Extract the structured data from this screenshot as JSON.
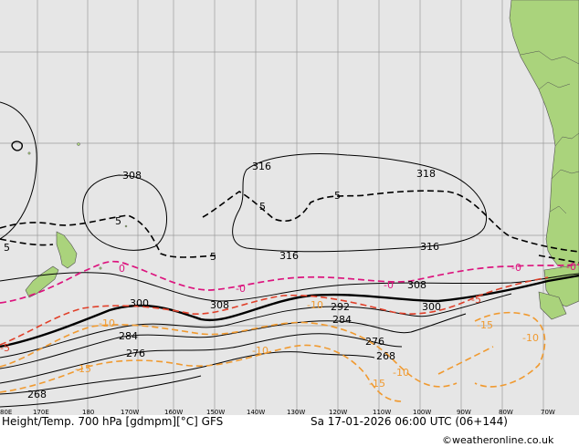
{
  "footer": {
    "title": "Height/Temp. 700 hPa [gdmpm][°C] GFS",
    "valid": "Sa 17-01-2026 06:00 UTC (06+144)",
    "copyright": "©weatheronline.co.uk"
  },
  "lon_ticks": [
    "80E",
    "170E",
    "180",
    "170W",
    "160W",
    "150W",
    "140W",
    "130W",
    "120W",
    "110W",
    "100W",
    "90W",
    "80W",
    "70W"
  ],
  "height_labels": [
    "308",
    "316",
    "318",
    "5",
    "5",
    "5",
    "5",
    "5",
    "316",
    "316",
    "308",
    "300",
    "308",
    "292",
    "284",
    "300",
    "284",
    "276",
    "276",
    "268",
    "268"
  ],
  "temp_labels": [
    "0",
    "-0",
    "-5",
    "-0",
    "-0",
    "-0",
    "-10",
    "-10",
    "-5",
    "-10",
    "-15",
    "-10",
    "-15",
    "-10",
    "-15"
  ],
  "colors": {
    "ocean": "#e6e6e6",
    "land": "#aad37c",
    "grid": "#999999",
    "height_line": "#000000",
    "zero_isotherm": "#dc147e",
    "minus5_isotherm": "#e0402a",
    "cold_isotherm": "#f09a30",
    "coast": "#505050"
  }
}
